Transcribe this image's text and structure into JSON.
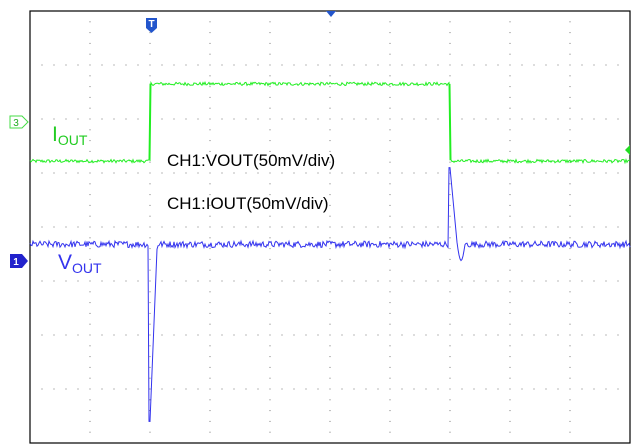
{
  "chart_data": {
    "type": "line",
    "title": "",
    "grid": true,
    "divisions": {
      "x": 10,
      "y": 8
    },
    "annotations": {
      "ch1_scale": "CH1:VOUT(50mV/div)",
      "ch2_scale": "CH1:IOUT(50mV/div)"
    },
    "channels": [
      {
        "marker": "3",
        "label_main": "I",
        "label_sub": "OUT",
        "color": "#22ee22",
        "baseline_div": 5.22,
        "high_div": 6.65,
        "step_up_div": 2.0,
        "step_down_div": 7.0,
        "noise_div": 0.03
      },
      {
        "marker": "1",
        "label_main": "V",
        "label_sub": "OUT",
        "color": "#3333ee",
        "baseline_div": 3.68,
        "noise_div": 0.06,
        "undershoot_div": 2.0,
        "undershoot_min_div": 0.4,
        "overshoot_div": 7.0,
        "overshoot_max_div": 5.1
      }
    ],
    "trigger_marker": "T",
    "trigger_position_div": 2.0
  },
  "colors": {
    "frame": "#000000",
    "grid": "#777777",
    "text": "#000000",
    "trigger": "#2255cc"
  }
}
